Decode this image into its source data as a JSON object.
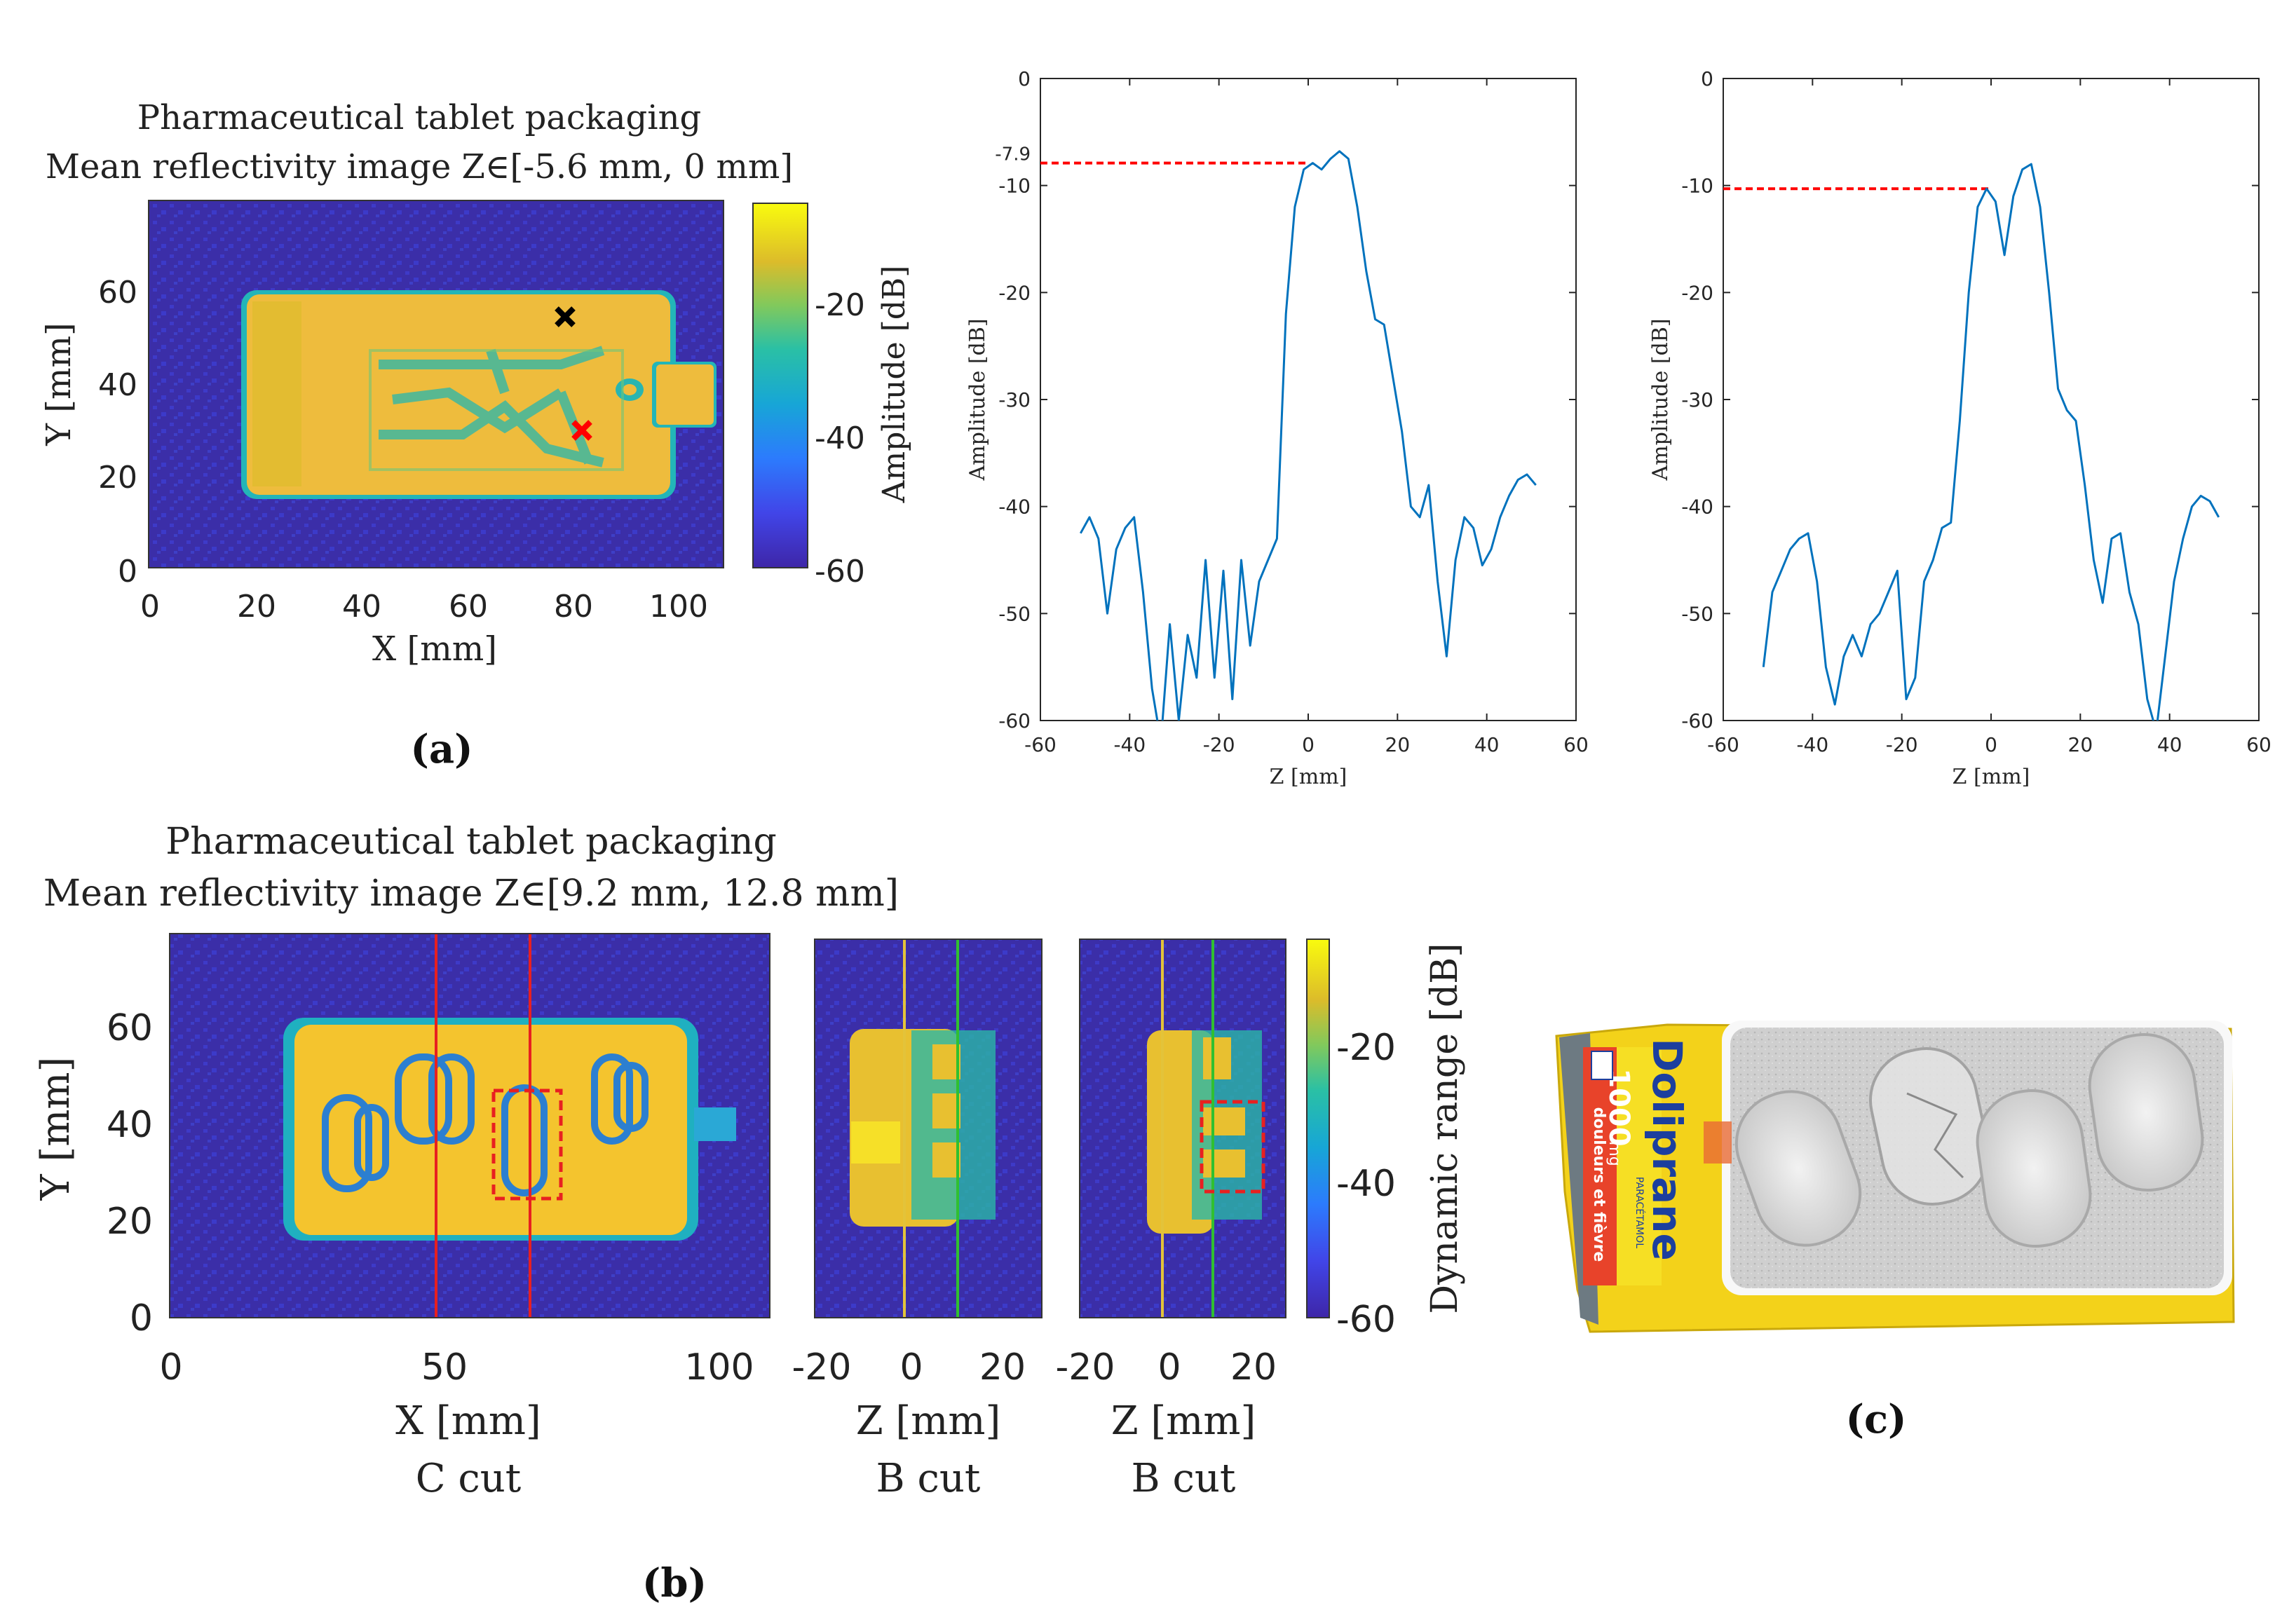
{
  "panel_a": {
    "title_line1": "Pharmaceutical tablet packaging",
    "title_line2": "Mean reflectivity image Z∈[-5.6 mm, 0 mm]",
    "xlabel": "X [mm]",
    "ylabel": "Y [mm]",
    "xticks": [
      "0",
      "20",
      "40",
      "60",
      "80",
      "100"
    ],
    "yticks": [
      "0",
      "20",
      "40",
      "60"
    ],
    "colorbar_label": "Amplitude [dB]",
    "colorbar_ticks": [
      "-20",
      "-40",
      "-60"
    ],
    "marker_colors": {
      "black": "#000000",
      "red": "#ff0000"
    },
    "tag": "(a)"
  },
  "panel_b": {
    "title_line1": "Pharmaceutical tablet packaging",
    "title_line2": "Mean reflectivity image Z∈[9.2 mm, 12.8 mm]",
    "c_xlabel": "X [mm]",
    "c_cut_label": "C cut",
    "ylabel": "Y [mm]",
    "c_xticks": [
      "0",
      "50",
      "100"
    ],
    "yticks": [
      "0",
      "20",
      "40",
      "60"
    ],
    "b1_xlabel": "Z [mm]",
    "b1_cut_label": "B cut",
    "b2_xlabel": "Z [mm]",
    "b2_cut_label": "B cut",
    "b_xticks": [
      "-20",
      "0",
      "20"
    ],
    "colorbar_label": "Dynamic range [dB]",
    "colorbar_ticks": [
      "-20",
      "-40",
      "-60"
    ],
    "tag": "(b)"
  },
  "panel_c": {
    "tag": "(c)",
    "box_brand": "Doliprane",
    "box_dose": "1000",
    "box_unit": "mg",
    "box_subtitle": "douleurs et fièvre",
    "box_ingredient": "PARACÉTAMOL"
  },
  "chart_data": [
    {
      "type": "line",
      "name": "profile-black-marker",
      "xlabel": "Z [mm]",
      "ylabel": "Amplitude [dB]",
      "xlim": [
        -60,
        60
      ],
      "ylim": [
        -60,
        0
      ],
      "xticks": [
        "-60",
        "-40",
        "-20",
        "0",
        "20",
        "40",
        "60"
      ],
      "yticks": [
        "0",
        "-10",
        "-20",
        "-30",
        "-40",
        "-50",
        "-60"
      ],
      "annotation": "-7.9",
      "annotation_value": -7.9,
      "annotation_x": 0,
      "line_color": "#0072bd",
      "ref_color": "#ff0000",
      "x": [
        -51,
        -49,
        -47,
        -45,
        -43,
        -41,
        -39,
        -37,
        -35,
        -33,
        -31,
        -29,
        -27,
        -25,
        -23,
        -21,
        -19,
        -17,
        -15,
        -13,
        -11,
        -9,
        -7,
        -5,
        -3,
        -1,
        1,
        3,
        5,
        7,
        9,
        11,
        13,
        15,
        17,
        19,
        21,
        23,
        25,
        27,
        29,
        31,
        33,
        35,
        37,
        39,
        41,
        43,
        45,
        47,
        49,
        51
      ],
      "y": [
        -42.5,
        -41,
        -43,
        -50,
        -44,
        -42,
        -41,
        -48,
        -57,
        -62,
        -51,
        -60,
        -52,
        -56,
        -45,
        -56,
        -46,
        -58,
        -45,
        -53,
        -47,
        -45,
        -43,
        -22,
        -12,
        -8.5,
        -7.9,
        -8.5,
        -7.5,
        -6.8,
        -7.5,
        -12,
        -18,
        -22.5,
        -23,
        -28,
        -33,
        -40,
        -41,
        -38,
        -47,
        -54,
        -45,
        -41,
        -42,
        -45.5,
        -44,
        -41,
        -39,
        -37.5,
        -37,
        -38
      ]
    },
    {
      "type": "line",
      "name": "profile-red-marker",
      "xlabel": "Z [mm]",
      "ylabel": "Amplitude [dB]",
      "xlim": [
        -60,
        60
      ],
      "ylim": [
        -60,
        0
      ],
      "xticks": [
        "-60",
        "-40",
        "-20",
        "0",
        "20",
        "40",
        "60"
      ],
      "yticks": [
        "0",
        "-10",
        "-20",
        "-30",
        "-40",
        "-50",
        "-60"
      ],
      "annotation_value": -10.3,
      "annotation_x": 0,
      "line_color": "#0072bd",
      "ref_color": "#ff0000",
      "x": [
        -51,
        -49,
        -47,
        -45,
        -43,
        -41,
        -39,
        -37,
        -35,
        -33,
        -31,
        -29,
        -27,
        -25,
        -23,
        -21,
        -19,
        -17,
        -15,
        -13,
        -11,
        -9,
        -7,
        -5,
        -3,
        -1,
        1,
        3,
        5,
        7,
        9,
        11,
        13,
        15,
        17,
        19,
        21,
        23,
        25,
        27,
        29,
        31,
        33,
        35,
        37,
        39,
        41,
        43,
        45,
        47,
        49,
        51
      ],
      "y": [
        -55,
        -48,
        -46,
        -44,
        -43,
        -42.5,
        -47,
        -55,
        -58.5,
        -54,
        -52,
        -54,
        -51,
        -50,
        -48,
        -46,
        -58,
        -56,
        -47,
        -45,
        -42,
        -41.5,
        -32,
        -20,
        -12,
        -10.3,
        -11.5,
        -16.5,
        -11,
        -8.5,
        -8,
        -12,
        -20,
        -29,
        -31,
        -32,
        -38,
        -45,
        -49,
        -43,
        -42.5,
        -48,
        -51,
        -58,
        -61,
        -54,
        -47,
        -43,
        -40,
        -39,
        -39.5,
        -41
      ]
    },
    {
      "type": "heatmap",
      "name": "mean-reflectivity-a",
      "title": "Mean reflectivity image Z∈[-5.6 mm, 0 mm]",
      "xlabel": "X [mm]",
      "ylabel": "Y [mm]",
      "xlim": [
        0,
        110
      ],
      "ylim": [
        0,
        78
      ],
      "clim": [
        -60,
        -5
      ],
      "colorbar_label": "Amplitude [dB]"
    },
    {
      "type": "heatmap",
      "name": "mean-reflectivity-b",
      "title": "Mean reflectivity image Z∈[9.2 mm, 12.8 mm]",
      "xlabel": "X [mm]",
      "ylabel": "Y [mm]",
      "xlim": [
        0,
        112
      ],
      "ylim": [
        0,
        78
      ],
      "clim": [
        -60,
        -5
      ],
      "colorbar_label": "Dynamic range [dB]"
    }
  ]
}
